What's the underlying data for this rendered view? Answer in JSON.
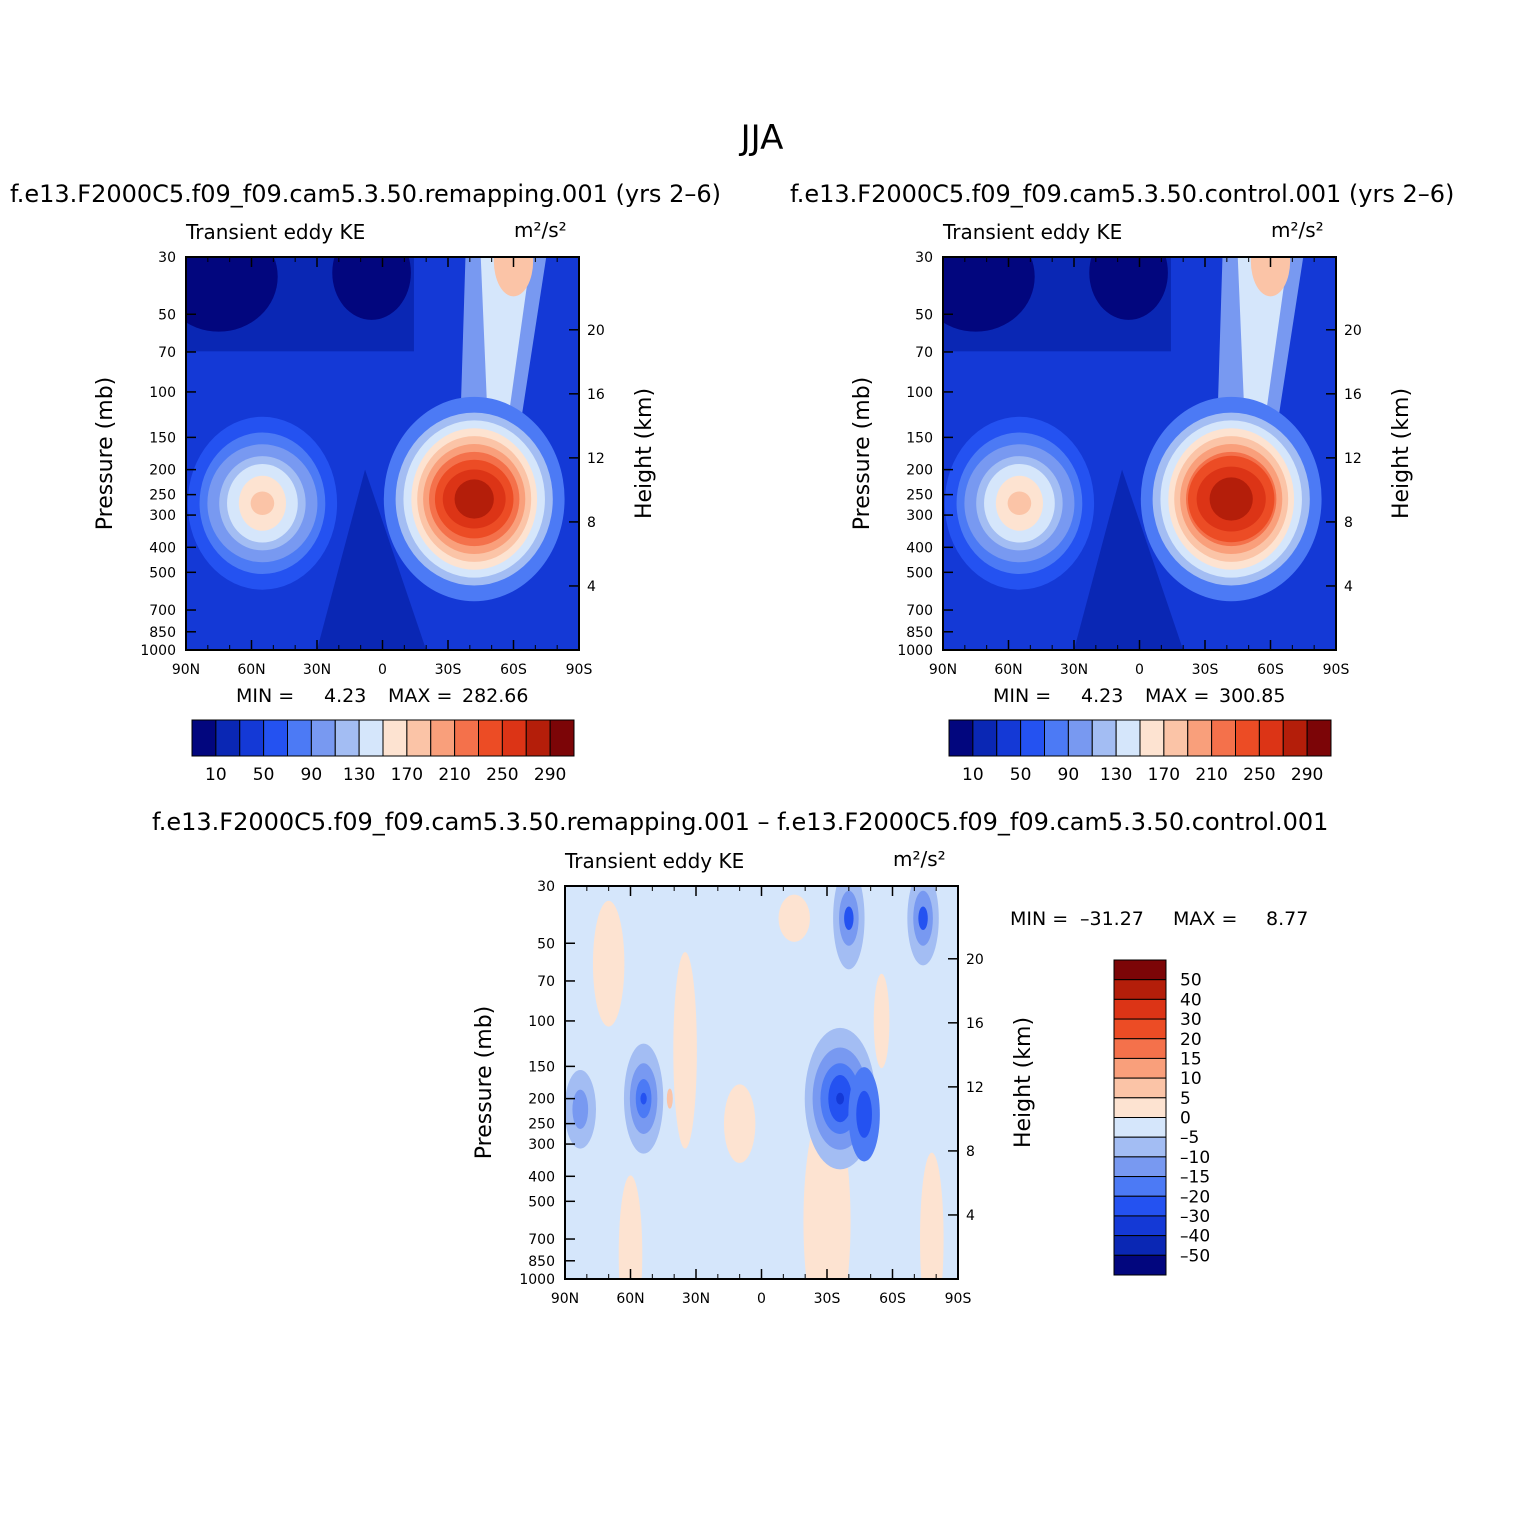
{
  "page_title": "JJA",
  "chart_data": [
    {
      "type": "heatmap",
      "title": "f.e13.F2000C5.f09_f09.cam5.3.50.remapping.001 (yrs 2–6)",
      "left_label": "Transient eddy KE",
      "units": "m²/s²",
      "xlabel": "",
      "ylabel": "Pressure (mb)",
      "ylabel_right": "Height (km)",
      "x_ticks": [
        "90N",
        "60N",
        "30N",
        "0",
        "30S",
        "60S",
        "90S"
      ],
      "y_ticks": [
        "30",
        "50",
        "70",
        "100",
        "150",
        "200",
        "250",
        "300",
        "400",
        "500",
        "700",
        "850",
        "1000"
      ],
      "y_right_ticks": [
        "20",
        "16",
        "12",
        "8",
        "4"
      ],
      "y_scale": "log",
      "min_label": "MIN =",
      "min_value": "4.23",
      "max_label": "MAX =",
      "max_value": "282.66",
      "colorbar_labels": [
        "10",
        "50",
        "90",
        "130",
        "170",
        "210",
        "250",
        "290"
      ],
      "colorbar_colors": [
        "#02067e",
        "#0a27b4",
        "#1439d6",
        "#2452f1",
        "#4c7af5",
        "#7899f1",
        "#a3bdf3",
        "#d5e6fb",
        "#fde3d1",
        "#fbc4a7",
        "#f99f7b",
        "#f4714b",
        "#ec4c25",
        "#dc3416",
        "#b41e0a",
        "#7c0507"
      ],
      "features": [
        {
          "lat": -40,
          "p": 250,
          "value": 282.66
        },
        {
          "lat": 58,
          "p": 250,
          "value": 190
        }
      ]
    },
    {
      "type": "heatmap",
      "title": "f.e13.F2000C5.f09_f09.cam5.3.50.control.001 (yrs 2–6)",
      "left_label": "Transient eddy KE",
      "units": "m²/s²",
      "xlabel": "",
      "ylabel": "Pressure (mb)",
      "ylabel_right": "Height (km)",
      "x_ticks": [
        "90N",
        "60N",
        "30N",
        "0",
        "30S",
        "60S",
        "90S"
      ],
      "y_ticks": [
        "30",
        "50",
        "70",
        "100",
        "150",
        "200",
        "250",
        "300",
        "400",
        "500",
        "700",
        "850",
        "1000"
      ],
      "y_right_ticks": [
        "20",
        "16",
        "12",
        "8",
        "4"
      ],
      "y_scale": "log",
      "min_label": "MIN =",
      "min_value": "4.23",
      "max_label": "MAX =",
      "max_value": "300.85",
      "colorbar_labels": [
        "10",
        "50",
        "90",
        "130",
        "170",
        "210",
        "250",
        "290"
      ],
      "colorbar_colors": [
        "#02067e",
        "#0a27b4",
        "#1439d6",
        "#2452f1",
        "#4c7af5",
        "#7899f1",
        "#a3bdf3",
        "#d5e6fb",
        "#fde3d1",
        "#fbc4a7",
        "#f99f7b",
        "#f4714b",
        "#ec4c25",
        "#dc3416",
        "#b41e0a",
        "#7c0507"
      ],
      "features": [
        {
          "lat": -40,
          "p": 250,
          "value": 300.85
        },
        {
          "lat": 58,
          "p": 250,
          "value": 195
        }
      ]
    },
    {
      "type": "heatmap",
      "title": "f.e13.F2000C5.f09_f09.cam5.3.50.remapping.001 – f.e13.F2000C5.f09_f09.cam5.3.50.control.001",
      "left_label": "Transient eddy KE",
      "units": "m²/s²",
      "xlabel": "",
      "ylabel": "Pressure (mb)",
      "ylabel_right": "Height (km)",
      "x_ticks": [
        "90N",
        "60N",
        "30N",
        "0",
        "30S",
        "60S",
        "90S"
      ],
      "y_ticks": [
        "30",
        "50",
        "70",
        "100",
        "150",
        "200",
        "250",
        "300",
        "400",
        "500",
        "700",
        "850",
        "1000"
      ],
      "y_right_ticks": [
        "20",
        "16",
        "12",
        "8",
        "4"
      ],
      "y_scale": "log",
      "min_label": "MIN =",
      "min_value": "–31.27",
      "max_label": "MAX =",
      "max_value": "8.77",
      "colorbar_labels": [
        "50",
        "40",
        "30",
        "20",
        "15",
        "10",
        "5",
        "0",
        "–5",
        "–10",
        "–15",
        "–20",
        "–30",
        "–40",
        "–50"
      ],
      "colorbar_colors": [
        "#7c0507",
        "#b41e0a",
        "#dc3416",
        "#ec4c25",
        "#f4714b",
        "#f99f7b",
        "#fbc4a7",
        "#fde3d1",
        "#d5e6fb",
        "#a3bdf3",
        "#7899f1",
        "#4c7af5",
        "#2452f1",
        "#1439d6",
        "#0a27b4",
        "#02067e"
      ],
      "features": [
        {
          "lat": -36,
          "p": 200,
          "value": -31.27
        },
        {
          "lat": 54,
          "p": 200,
          "value": -25
        }
      ]
    }
  ]
}
